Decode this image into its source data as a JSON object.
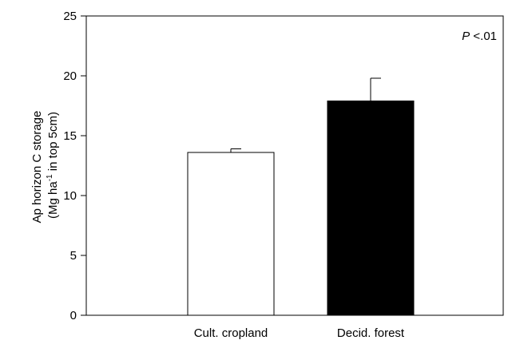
{
  "chart_data": {
    "type": "bar",
    "categories": [
      "Cult. cropland",
      "Decid. forest"
    ],
    "values": [
      13.6,
      17.9
    ],
    "errors": [
      0.3,
      1.9
    ],
    "bar_colors": [
      "#ffffff",
      "#000000"
    ],
    "bar_edge_color": "#000000",
    "ylabel_line1": "Ap horizon C storage",
    "ylabel_line2_pre": "(Mg ha",
    "ylabel_line2_sup": "-1",
    "ylabel_line2_post": " in top 5cm)",
    "ylim": [
      0,
      25
    ],
    "yticks": [
      0,
      5,
      10,
      15,
      20,
      25
    ],
    "annotation_p": "P",
    "annotation_rest": " <.01",
    "grid": false
  }
}
